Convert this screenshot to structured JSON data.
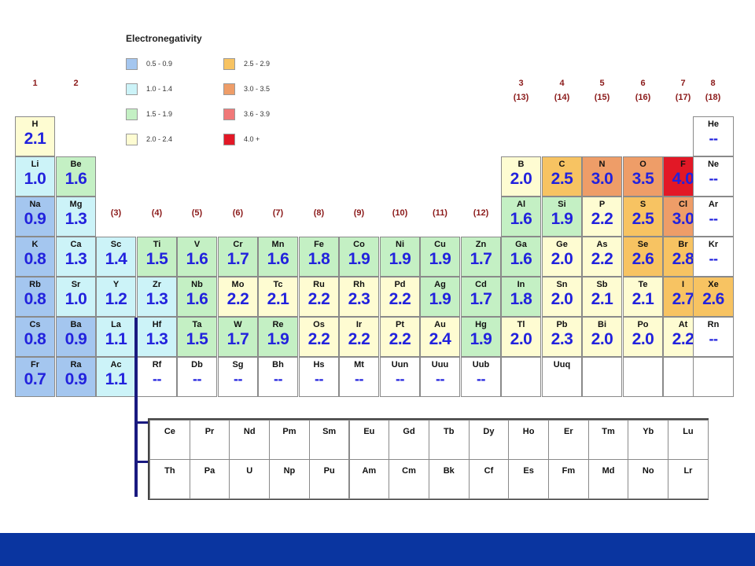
{
  "legend": {
    "title": "Electronegativity",
    "items": [
      {
        "label": "0.5 - 0.9",
        "color": "#a4c6ef"
      },
      {
        "label": "1.0 - 1.4",
        "color": "#ccf3f8"
      },
      {
        "label": "1.5 - 1.9",
        "color": "#c4f0c4"
      },
      {
        "label": "2.0 - 2.4",
        "color": "#fefcd2"
      },
      {
        "label": "2.5 - 2.9",
        "color": "#f7c362"
      },
      {
        "label": "3.0 - 3.5",
        "color": "#ee9d68"
      },
      {
        "label": "3.6 - 3.9",
        "color": "#f07878"
      },
      {
        "label": "4.0 +",
        "color": "#e21826"
      }
    ]
  },
  "groups": [
    {
      "label": "1",
      "col": 1,
      "row": 0
    },
    {
      "label": "2",
      "col": 2,
      "row": 0
    },
    {
      "label": "3\n(13)",
      "col": 13,
      "row": 0
    },
    {
      "label": "4\n(14)",
      "col": 14,
      "row": 0
    },
    {
      "label": "5\n(15)",
      "col": 15,
      "row": 0
    },
    {
      "label": "6\n(16)",
      "col": 16,
      "row": 0
    },
    {
      "label": "7\n(17)",
      "col": 17,
      "row": 0
    },
    {
      "label": "8\n(18)",
      "col": 18,
      "row": 0
    },
    {
      "label": "(3)",
      "col": 3,
      "row": 1
    },
    {
      "label": "(4)",
      "col": 4,
      "row": 1
    },
    {
      "label": "(5)",
      "col": 5,
      "row": 1
    },
    {
      "label": "(6)",
      "col": 6,
      "row": 1
    },
    {
      "label": "(7)",
      "col": 7,
      "row": 1
    },
    {
      "label": "(8)",
      "col": 8,
      "row": 1
    },
    {
      "label": "(9)",
      "col": 9,
      "row": 1
    },
    {
      "label": "(10)",
      "col": 10,
      "row": 1
    },
    {
      "label": "(11)",
      "col": 11,
      "row": 1
    },
    {
      "label": "(12)",
      "col": 12,
      "row": 1
    }
  ],
  "elements": [
    {
      "symbol": "H",
      "value": "2.1",
      "period": 1,
      "group": 1,
      "color": "#fefcd2"
    },
    {
      "symbol": "He",
      "value": "--",
      "period": 1,
      "group": 18,
      "color": "#ffffff"
    },
    {
      "symbol": "Li",
      "value": "1.0",
      "period": 2,
      "group": 1,
      "color": "#ccf3f8"
    },
    {
      "symbol": "Be",
      "value": "1.6",
      "period": 2,
      "group": 2,
      "color": "#c4f0c4"
    },
    {
      "symbol": "B",
      "value": "2.0",
      "period": 2,
      "group": 13,
      "color": "#fefcd2"
    },
    {
      "symbol": "C",
      "value": "2.5",
      "period": 2,
      "group": 14,
      "color": "#f7c362"
    },
    {
      "symbol": "N",
      "value": "3.0",
      "period": 2,
      "group": 15,
      "color": "#ee9d68"
    },
    {
      "symbol": "O",
      "value": "3.5",
      "period": 2,
      "group": 16,
      "color": "#ee9d68"
    },
    {
      "symbol": "F",
      "value": "4.0",
      "period": 2,
      "group": 17,
      "color": "#e21826"
    },
    {
      "symbol": "Ne",
      "value": "--",
      "period": 2,
      "group": 18,
      "color": "#ffffff"
    },
    {
      "symbol": "Na",
      "value": "0.9",
      "period": 3,
      "group": 1,
      "color": "#a4c6ef"
    },
    {
      "symbol": "Mg",
      "value": "1.3",
      "period": 3,
      "group": 2,
      "color": "#ccf3f8"
    },
    {
      "symbol": "Al",
      "value": "1.6",
      "period": 3,
      "group": 13,
      "color": "#c4f0c4"
    },
    {
      "symbol": "Si",
      "value": "1.9",
      "period": 3,
      "group": 14,
      "color": "#c4f0c4"
    },
    {
      "symbol": "P",
      "value": "2.2",
      "period": 3,
      "group": 15,
      "color": "#fefcd2"
    },
    {
      "symbol": "S",
      "value": "2.5",
      "period": 3,
      "group": 16,
      "color": "#f7c362"
    },
    {
      "symbol": "Cl",
      "value": "3.0",
      "period": 3,
      "group": 17,
      "color": "#ee9d68"
    },
    {
      "symbol": "Ar",
      "value": "--",
      "period": 3,
      "group": 18,
      "color": "#ffffff"
    },
    {
      "symbol": "K",
      "value": "0.8",
      "period": 4,
      "group": 1,
      "color": "#a4c6ef"
    },
    {
      "symbol": "Ca",
      "value": "1.3",
      "period": 4,
      "group": 2,
      "color": "#ccf3f8"
    },
    {
      "symbol": "Sc",
      "value": "1.4",
      "period": 4,
      "group": 3,
      "color": "#ccf3f8"
    },
    {
      "symbol": "Ti",
      "value": "1.5",
      "period": 4,
      "group": 4,
      "color": "#c4f0c4"
    },
    {
      "symbol": "V",
      "value": "1.6",
      "period": 4,
      "group": 5,
      "color": "#c4f0c4"
    },
    {
      "symbol": "Cr",
      "value": "1.7",
      "period": 4,
      "group": 6,
      "color": "#c4f0c4"
    },
    {
      "symbol": "Mn",
      "value": "1.6",
      "period": 4,
      "group": 7,
      "color": "#c4f0c4"
    },
    {
      "symbol": "Fe",
      "value": "1.8",
      "period": 4,
      "group": 8,
      "color": "#c4f0c4"
    },
    {
      "symbol": "Co",
      "value": "1.9",
      "period": 4,
      "group": 9,
      "color": "#c4f0c4"
    },
    {
      "symbol": "Ni",
      "value": "1.9",
      "period": 4,
      "group": 10,
      "color": "#c4f0c4"
    },
    {
      "symbol": "Cu",
      "value": "1.9",
      "period": 4,
      "group": 11,
      "color": "#c4f0c4"
    },
    {
      "symbol": "Zn",
      "value": "1.7",
      "period": 4,
      "group": 12,
      "color": "#c4f0c4"
    },
    {
      "symbol": "Ga",
      "value": "1.6",
      "period": 4,
      "group": 13,
      "color": "#c4f0c4"
    },
    {
      "symbol": "Ge",
      "value": "2.0",
      "period": 4,
      "group": 14,
      "color": "#fefcd2"
    },
    {
      "symbol": "As",
      "value": "2.2",
      "period": 4,
      "group": 15,
      "color": "#fefcd2"
    },
    {
      "symbol": "Se",
      "value": "2.6",
      "period": 4,
      "group": 16,
      "color": "#f7c362"
    },
    {
      "symbol": "Br",
      "value": "2.8",
      "period": 4,
      "group": 17,
      "color": "#f7c362"
    },
    {
      "symbol": "Kr",
      "value": "--",
      "period": 4,
      "group": 18,
      "color": "#ffffff"
    },
    {
      "symbol": "Rb",
      "value": "0.8",
      "period": 5,
      "group": 1,
      "color": "#a4c6ef"
    },
    {
      "symbol": "Sr",
      "value": "1.0",
      "period": 5,
      "group": 2,
      "color": "#ccf3f8"
    },
    {
      "symbol": "Y",
      "value": "1.2",
      "period": 5,
      "group": 3,
      "color": "#ccf3f8"
    },
    {
      "symbol": "Zr",
      "value": "1.3",
      "period": 5,
      "group": 4,
      "color": "#ccf3f8"
    },
    {
      "symbol": "Nb",
      "value": "1.6",
      "period": 5,
      "group": 5,
      "color": "#c4f0c4"
    },
    {
      "symbol": "Mo",
      "value": "2.2",
      "period": 5,
      "group": 6,
      "color": "#fefcd2"
    },
    {
      "symbol": "Tc",
      "value": "2.1",
      "period": 5,
      "group": 7,
      "color": "#fefcd2"
    },
    {
      "symbol": "Ru",
      "value": "2.2",
      "period": 5,
      "group": 8,
      "color": "#fefcd2"
    },
    {
      "symbol": "Rh",
      "value": "2.3",
      "period": 5,
      "group": 9,
      "color": "#fefcd2"
    },
    {
      "symbol": "Pd",
      "value": "2.2",
      "period": 5,
      "group": 10,
      "color": "#fefcd2"
    },
    {
      "symbol": "Ag",
      "value": "1.9",
      "period": 5,
      "group": 11,
      "color": "#c4f0c4"
    },
    {
      "symbol": "Cd",
      "value": "1.7",
      "period": 5,
      "group": 12,
      "color": "#c4f0c4"
    },
    {
      "symbol": "In",
      "value": "1.8",
      "period": 5,
      "group": 13,
      "color": "#c4f0c4"
    },
    {
      "symbol": "Sn",
      "value": "2.0",
      "period": 5,
      "group": 14,
      "color": "#fefcd2"
    },
    {
      "symbol": "Sb",
      "value": "2.1",
      "period": 5,
      "group": 15,
      "color": "#fefcd2"
    },
    {
      "symbol": "Te",
      "value": "2.1",
      "period": 5,
      "group": 16,
      "color": "#fefcd2"
    },
    {
      "symbol": "I",
      "value": "2.7",
      "period": 5,
      "group": 17,
      "color": "#f7c362"
    },
    {
      "symbol": "Xe",
      "value": "2.6",
      "period": 5,
      "group": 18,
      "color": "#f7c362"
    },
    {
      "symbol": "Cs",
      "value": "0.8",
      "period": 6,
      "group": 1,
      "color": "#a4c6ef"
    },
    {
      "symbol": "Ba",
      "value": "0.9",
      "period": 6,
      "group": 2,
      "color": "#a4c6ef"
    },
    {
      "symbol": "La",
      "value": "1.1",
      "period": 6,
      "group": 3,
      "color": "#ccf3f8"
    },
    {
      "symbol": "Hf",
      "value": "1.3",
      "period": 6,
      "group": 4,
      "color": "#ccf3f8"
    },
    {
      "symbol": "Ta",
      "value": "1.5",
      "period": 6,
      "group": 5,
      "color": "#c4f0c4"
    },
    {
      "symbol": "W",
      "value": "1.7",
      "period": 6,
      "group": 6,
      "color": "#c4f0c4"
    },
    {
      "symbol": "Re",
      "value": "1.9",
      "period": 6,
      "group": 7,
      "color": "#c4f0c4"
    },
    {
      "symbol": "Os",
      "value": "2.2",
      "period": 6,
      "group": 8,
      "color": "#fefcd2"
    },
    {
      "symbol": "Ir",
      "value": "2.2",
      "period": 6,
      "group": 9,
      "color": "#fefcd2"
    },
    {
      "symbol": "Pt",
      "value": "2.2",
      "period": 6,
      "group": 10,
      "color": "#fefcd2"
    },
    {
      "symbol": "Au",
      "value": "2.4",
      "period": 6,
      "group": 11,
      "color": "#fefcd2"
    },
    {
      "symbol": "Hg",
      "value": "1.9",
      "period": 6,
      "group": 12,
      "color": "#c4f0c4"
    },
    {
      "symbol": "Tl",
      "value": "2.0",
      "period": 6,
      "group": 13,
      "color": "#fefcd2"
    },
    {
      "symbol": "Pb",
      "value": "2.3",
      "period": 6,
      "group": 14,
      "color": "#fefcd2"
    },
    {
      "symbol": "Bi",
      "value": "2.0",
      "period": 6,
      "group": 15,
      "color": "#fefcd2"
    },
    {
      "symbol": "Po",
      "value": "2.0",
      "period": 6,
      "group": 16,
      "color": "#fefcd2"
    },
    {
      "symbol": "At",
      "value": "2.2",
      "period": 6,
      "group": 17,
      "color": "#fefcd2"
    },
    {
      "symbol": "Rn",
      "value": "--",
      "period": 6,
      "group": 18,
      "color": "#ffffff"
    },
    {
      "symbol": "Fr",
      "value": "0.7",
      "period": 7,
      "group": 1,
      "color": "#a4c6ef"
    },
    {
      "symbol": "Ra",
      "value": "0.9",
      "period": 7,
      "group": 2,
      "color": "#a4c6ef"
    },
    {
      "symbol": "Ac",
      "value": "1.1",
      "period": 7,
      "group": 3,
      "color": "#ccf3f8"
    },
    {
      "symbol": "Rf",
      "value": "--",
      "period": 7,
      "group": 4,
      "color": "#ffffff"
    },
    {
      "symbol": "Db",
      "value": "--",
      "period": 7,
      "group": 5,
      "color": "#ffffff"
    },
    {
      "symbol": "Sg",
      "value": "--",
      "period": 7,
      "group": 6,
      "color": "#ffffff"
    },
    {
      "symbol": "Bh",
      "value": "--",
      "period": 7,
      "group": 7,
      "color": "#ffffff"
    },
    {
      "symbol": "Hs",
      "value": "--",
      "period": 7,
      "group": 8,
      "color": "#ffffff"
    },
    {
      "symbol": "Mt",
      "value": "--",
      "period": 7,
      "group": 9,
      "color": "#ffffff"
    },
    {
      "symbol": "Uun",
      "value": "--",
      "period": 7,
      "group": 10,
      "color": "#ffffff"
    },
    {
      "symbol": "Uuu",
      "value": "--",
      "period": 7,
      "group": 11,
      "color": "#ffffff"
    },
    {
      "symbol": "Uub",
      "value": "--",
      "period": 7,
      "group": 12,
      "color": "#ffffff"
    },
    {
      "symbol": "",
      "value": "",
      "period": 7,
      "group": 13,
      "color": "#ffffff"
    },
    {
      "symbol": "Uuq",
      "value": "",
      "period": 7,
      "group": 14,
      "color": "#ffffff"
    },
    {
      "symbol": "",
      "value": "",
      "period": 7,
      "group": 15,
      "color": "#ffffff"
    },
    {
      "symbol": "",
      "value": "",
      "period": 7,
      "group": 16,
      "color": "#ffffff"
    },
    {
      "symbol": "",
      "value": "",
      "period": 7,
      "group": 17,
      "color": "#ffffff"
    },
    {
      "symbol": "",
      "value": "",
      "period": 7,
      "group": 18,
      "color": "#ffffff"
    }
  ],
  "f_block": {
    "lanthanides": [
      "Ce",
      "Pr",
      "Nd",
      "Pm",
      "Sm",
      "Eu",
      "Gd",
      "Tb",
      "Dy",
      "Ho",
      "Er",
      "Tm",
      "Yb",
      "Lu"
    ],
    "actinides": [
      "Th",
      "Pa",
      "U",
      "Np",
      "Pu",
      "Am",
      "Cm",
      "Bk",
      "Cf",
      "Es",
      "Fm",
      "Md",
      "No",
      "Lr"
    ]
  },
  "footer_color": "#0a35a0"
}
